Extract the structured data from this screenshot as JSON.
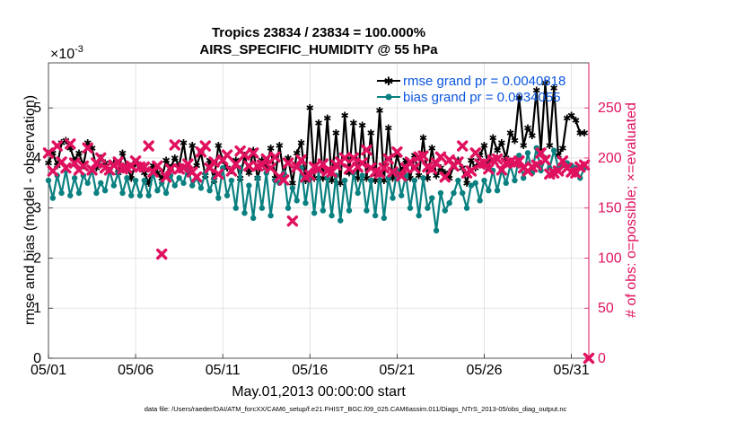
{
  "chart_data": {
    "type": "line",
    "title": "Tropics 23834 / 23834 = 100.000%",
    "subtitle": "AIRS_SPECIFIC_HUMIDITY @ 55 hPa",
    "xlabel": "May.01,2013 00:00:00 start",
    "ylabel": "rmse and bias (model - observation)",
    "ylabel_right": "# of obs: o=possible; ×=evaluated",
    "y_exponent": "×10",
    "y_exponent_power": "-3",
    "xlim": [
      1,
      32
    ],
    "ylim": [
      0,
      5.9
    ],
    "ylim_right": [
      0,
      295
    ],
    "x_ticks": [
      1,
      6,
      11,
      16,
      21,
      26,
      31
    ],
    "x_tick_labels": [
      "05/01",
      "05/06",
      "05/11",
      "05/16",
      "05/21",
      "05/26",
      "05/31"
    ],
    "y_ticks": [
      0,
      1,
      2,
      3,
      4,
      5
    ],
    "y_tick_labels": [
      "0",
      "1",
      "2",
      "3",
      "4",
      "5"
    ],
    "y_ticks_right": [
      0,
      50,
      100,
      150,
      200,
      250
    ],
    "y_tick_labels_right": [
      "0",
      "50",
      "100",
      "150",
      "200",
      "250"
    ],
    "grid": true,
    "legend_position": "top-right",
    "series": [
      {
        "name": "rmse grand pr = 0.0040818",
        "color": "#000000",
        "marker": "star",
        "axis": "left",
        "x": [
          1.0,
          1.25,
          1.5,
          1.75,
          2.0,
          2.25,
          2.5,
          2.75,
          3.0,
          3.25,
          3.5,
          3.75,
          4.0,
          4.25,
          4.5,
          4.75,
          5.0,
          5.25,
          5.5,
          5.75,
          6.0,
          6.25,
          6.5,
          6.75,
          7.0,
          7.25,
          7.5,
          7.75,
          8.0,
          8.25,
          8.5,
          8.75,
          9.0,
          9.25,
          9.5,
          9.75,
          10.0,
          10.25,
          10.5,
          10.75,
          11.0,
          11.25,
          11.5,
          11.75,
          12.0,
          12.25,
          12.5,
          12.75,
          13.0,
          13.25,
          13.5,
          13.75,
          14.0,
          14.25,
          14.5,
          14.75,
          15.0,
          15.25,
          15.5,
          15.75,
          16.0,
          16.25,
          16.5,
          16.75,
          17.0,
          17.25,
          17.5,
          17.75,
          18.0,
          18.25,
          18.5,
          18.75,
          19.0,
          19.25,
          19.5,
          19.75,
          20.0,
          20.25,
          20.5,
          20.75,
          21.0,
          21.25,
          21.5,
          21.75,
          22.0,
          22.25,
          22.5,
          22.75,
          23.0,
          23.25,
          23.5,
          23.75,
          24.0,
          24.25,
          24.5,
          24.75,
          25.0,
          25.25,
          25.5,
          25.75,
          26.0,
          26.25,
          26.5,
          26.75,
          27.0,
          27.25,
          27.5,
          27.75,
          28.0,
          28.25,
          28.5,
          28.75,
          29.0,
          29.25,
          29.5,
          29.75,
          30.0,
          30.25,
          30.5,
          30.75,
          31.0,
          31.25,
          31.5,
          31.75
        ],
        "values": [
          3.9,
          4.1,
          3.85,
          4.3,
          4.35,
          4.2,
          3.95,
          4.1,
          3.85,
          4.3,
          4.2,
          3.8,
          4.0,
          3.9,
          3.75,
          3.9,
          3.7,
          4.1,
          3.85,
          3.6,
          3.9,
          3.85,
          3.7,
          3.5,
          3.85,
          3.7,
          3.6,
          3.95,
          3.8,
          4.0,
          3.85,
          4.3,
          3.7,
          4.25,
          3.85,
          4.1,
          3.65,
          3.95,
          3.55,
          4.25,
          3.95,
          3.8,
          3.75,
          3.95,
          3.6,
          4.05,
          3.7,
          4.15,
          3.6,
          3.95,
          3.8,
          4.2,
          3.6,
          4.25,
          3.65,
          4.0,
          3.5,
          4.1,
          4.3,
          3.55,
          5.0,
          3.6,
          4.7,
          3.6,
          4.8,
          3.55,
          4.5,
          3.5,
          4.85,
          3.7,
          4.7,
          3.6,
          4.65,
          3.6,
          4.5,
          3.55,
          4.95,
          3.55,
          4.6,
          3.6,
          4.05,
          3.75,
          3.95,
          3.6,
          4.05,
          3.65,
          4.4,
          3.6,
          4.2,
          3.65,
          3.8,
          3.7,
          3.6,
          3.85,
          3.95,
          3.8,
          3.5,
          3.95,
          3.8,
          4.05,
          4.25,
          3.8,
          4.4,
          4.15,
          4.3,
          4.0,
          4.5,
          4.35,
          5.2,
          4.25,
          4.6,
          4.45,
          5.35,
          4.15,
          5.5,
          4.25,
          5.4,
          4.05,
          4.2,
          4.8,
          4.85,
          4.75,
          4.5,
          4.5
        ]
      },
      {
        "name": "bias grand pr = 0.0034055",
        "color": "#0a8080",
        "marker": "circle",
        "axis": "left",
        "x": [
          1.0,
          1.25,
          1.5,
          1.75,
          2.0,
          2.25,
          2.5,
          2.75,
          3.0,
          3.25,
          3.5,
          3.75,
          4.0,
          4.25,
          4.5,
          4.75,
          5.0,
          5.25,
          5.5,
          5.75,
          6.0,
          6.25,
          6.5,
          6.75,
          7.0,
          7.25,
          7.5,
          7.75,
          8.0,
          8.25,
          8.5,
          8.75,
          9.0,
          9.25,
          9.5,
          9.75,
          10.0,
          10.25,
          10.5,
          10.75,
          11.0,
          11.25,
          11.5,
          11.75,
          12.0,
          12.25,
          12.5,
          12.75,
          13.0,
          13.25,
          13.5,
          13.75,
          14.0,
          14.25,
          14.5,
          14.75,
          15.0,
          15.25,
          15.5,
          15.75,
          16.0,
          16.25,
          16.5,
          16.75,
          17.0,
          17.25,
          17.5,
          17.75,
          18.0,
          18.25,
          18.5,
          18.75,
          19.0,
          19.25,
          19.5,
          19.75,
          20.0,
          20.25,
          20.5,
          20.75,
          21.0,
          21.25,
          21.5,
          21.75,
          22.0,
          22.25,
          22.5,
          22.75,
          23.0,
          23.25,
          23.5,
          23.75,
          24.0,
          24.25,
          24.5,
          24.75,
          25.0,
          25.25,
          25.5,
          25.75,
          26.0,
          26.25,
          26.5,
          26.75,
          27.0,
          27.25,
          27.5,
          27.75,
          28.0,
          28.25,
          28.5,
          28.75,
          29.0,
          29.25,
          29.5,
          29.75,
          30.0,
          30.25,
          30.5,
          30.75,
          31.0,
          31.25,
          31.5,
          31.75
        ],
        "values": [
          3.55,
          3.2,
          3.65,
          3.3,
          3.75,
          3.25,
          3.6,
          3.3,
          3.65,
          3.5,
          3.75,
          3.3,
          3.5,
          3.35,
          3.75,
          3.45,
          3.7,
          3.3,
          3.6,
          3.25,
          3.55,
          3.25,
          3.55,
          3.25,
          3.7,
          3.35,
          3.5,
          3.3,
          3.65,
          3.45,
          3.6,
          3.5,
          3.8,
          3.45,
          3.6,
          3.4,
          3.7,
          3.35,
          3.6,
          3.2,
          3.8,
          3.25,
          3.55,
          3.0,
          3.8,
          2.9,
          3.45,
          2.8,
          3.6,
          3.0,
          3.7,
          2.85,
          3.55,
          3.5,
          3.7,
          3.0,
          3.4,
          3.15,
          3.8,
          3.1,
          3.7,
          2.9,
          3.75,
          2.95,
          3.6,
          2.85,
          3.65,
          2.75,
          3.55,
          2.95,
          3.7,
          3.3,
          3.65,
          2.95,
          3.55,
          2.85,
          3.7,
          2.8,
          3.6,
          3.2,
          3.75,
          3.25,
          3.65,
          3.0,
          3.55,
          2.85,
          3.6,
          3.0,
          3.2,
          2.55,
          3.3,
          2.95,
          3.1,
          3.3,
          3.55,
          3.3,
          3.0,
          3.45,
          3.5,
          3.15,
          3.55,
          3.35,
          3.75,
          3.35,
          3.75,
          3.5,
          3.85,
          3.55,
          4.05,
          3.6,
          4.1,
          3.7,
          4.2,
          3.75,
          4.0,
          3.8,
          4.15,
          3.8,
          3.85,
          3.9,
          3.85,
          3.8,
          3.6,
          3.8
        ]
      },
      {
        "name": "# of obs evaluated",
        "color": "#e0115f",
        "marker": "x",
        "axis": "right",
        "x": [
          1.0,
          1.25,
          1.5,
          1.75,
          2.0,
          2.25,
          2.5,
          2.75,
          3.0,
          3.25,
          3.5,
          3.75,
          4.0,
          4.25,
          4.5,
          4.75,
          5.0,
          5.25,
          5.5,
          5.75,
          6.0,
          6.25,
          6.5,
          6.75,
          7.0,
          7.25,
          7.5,
          7.75,
          8.0,
          8.25,
          8.5,
          8.75,
          9.0,
          9.25,
          9.5,
          9.75,
          10.0,
          10.25,
          10.5,
          10.75,
          11.0,
          11.25,
          11.5,
          11.75,
          12.0,
          12.25,
          12.5,
          12.75,
          13.0,
          13.25,
          13.5,
          13.75,
          14.0,
          14.25,
          14.5,
          14.75,
          15.0,
          15.25,
          15.5,
          15.75,
          16.0,
          16.25,
          16.5,
          16.75,
          17.0,
          17.25,
          17.5,
          17.75,
          18.0,
          18.25,
          18.5,
          18.75,
          19.0,
          19.25,
          19.5,
          19.75,
          20.0,
          20.25,
          20.5,
          20.75,
          21.0,
          21.25,
          21.5,
          21.75,
          22.0,
          22.25,
          22.5,
          22.75,
          23.0,
          23.25,
          23.5,
          23.75,
          24.0,
          24.25,
          24.5,
          24.75,
          25.0,
          25.25,
          25.5,
          25.75,
          26.0,
          26.25,
          26.5,
          26.75,
          27.0,
          27.25,
          27.5,
          27.75,
          28.0,
          28.25,
          28.5,
          28.75,
          29.0,
          29.25,
          29.5,
          29.75,
          30.0,
          30.25,
          30.5,
          30.75,
          31.0,
          31.25,
          31.5,
          31.75,
          32.0
        ],
        "values": [
          205,
          187,
          212,
          196,
          190,
          214,
          195,
          188,
          192,
          210,
          188,
          195,
          200,
          190,
          188,
          193,
          196,
          189,
          190,
          192,
          197,
          191,
          191,
          212,
          186,
          192,
          104,
          181,
          189,
          213,
          189,
          190,
          194,
          186,
          181,
          206,
          212,
          190,
          196,
          184,
          198,
          203,
          187,
          194,
          207,
          203,
          192,
          205,
          192,
          193,
          199,
          190,
          201,
          181,
          178,
          195,
          137,
          191,
          198,
          181,
          183,
          191,
          189,
          194,
          187,
          186,
          193,
          196,
          200,
          189,
          200,
          191,
          195,
          208,
          190,
          186,
          185,
          190,
          199,
          186,
          206,
          182,
          190,
          196,
          190,
          201,
          202,
          191,
          189,
          195,
          201,
          181,
          198,
          192,
          196,
          212,
          185,
          187,
          205,
          194,
          195,
          189,
          198,
          199,
          188,
          195,
          196,
          195,
          197,
          190,
          187,
          191,
          193,
          205,
          198,
          184,
          185,
          187,
          197,
          190,
          186,
          185,
          191,
          193,
          0
        ]
      }
    ]
  },
  "footer": "data file: /Users/raeder/DAI/ATM_forcXX/CAM6_setup/f.e21.FHIST_BGC.f09_025.CAM6assim.011/Diags_NTrS_2013-05/obs_diag_output.nc"
}
